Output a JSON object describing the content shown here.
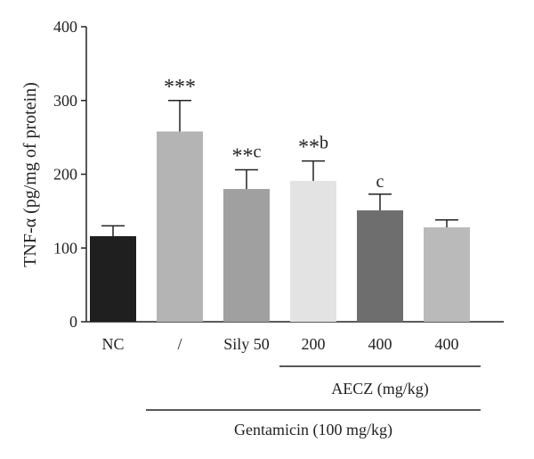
{
  "chart_data": {
    "type": "bar",
    "categories": [
      "NC",
      "/",
      "Sily 50",
      "200",
      "400",
      "400"
    ],
    "values": [
      116,
      258,
      180,
      191,
      151,
      128
    ],
    "errors": [
      14,
      42,
      26,
      27,
      22,
      10
    ],
    "bar_colors": [
      "#1f1f1f",
      "#b4b4b4",
      "#a0a0a0",
      "#e3e3e3",
      "#6e6e6e",
      "#bababa"
    ],
    "annotations": [
      {
        "stars": "",
        "letter": ""
      },
      {
        "stars": "***",
        "letter": ""
      },
      {
        "stars": "**",
        "letter": "c"
      },
      {
        "stars": "**",
        "letter": "b"
      },
      {
        "stars": "",
        "letter": "c"
      },
      {
        "stars": "",
        "letter": ""
      }
    ],
    "ylabel": "TNF-α (pg/mg of protein)",
    "ylim": [
      0,
      400
    ],
    "yticks": [
      0,
      100,
      200,
      300,
      400
    ],
    "grid": false,
    "groups": [
      {
        "label": "AECZ (mg/kg)",
        "from": 3,
        "to": 5
      },
      {
        "label": "Gentamicin (100 mg/kg)",
        "from": 1,
        "to": 5
      }
    ]
  }
}
